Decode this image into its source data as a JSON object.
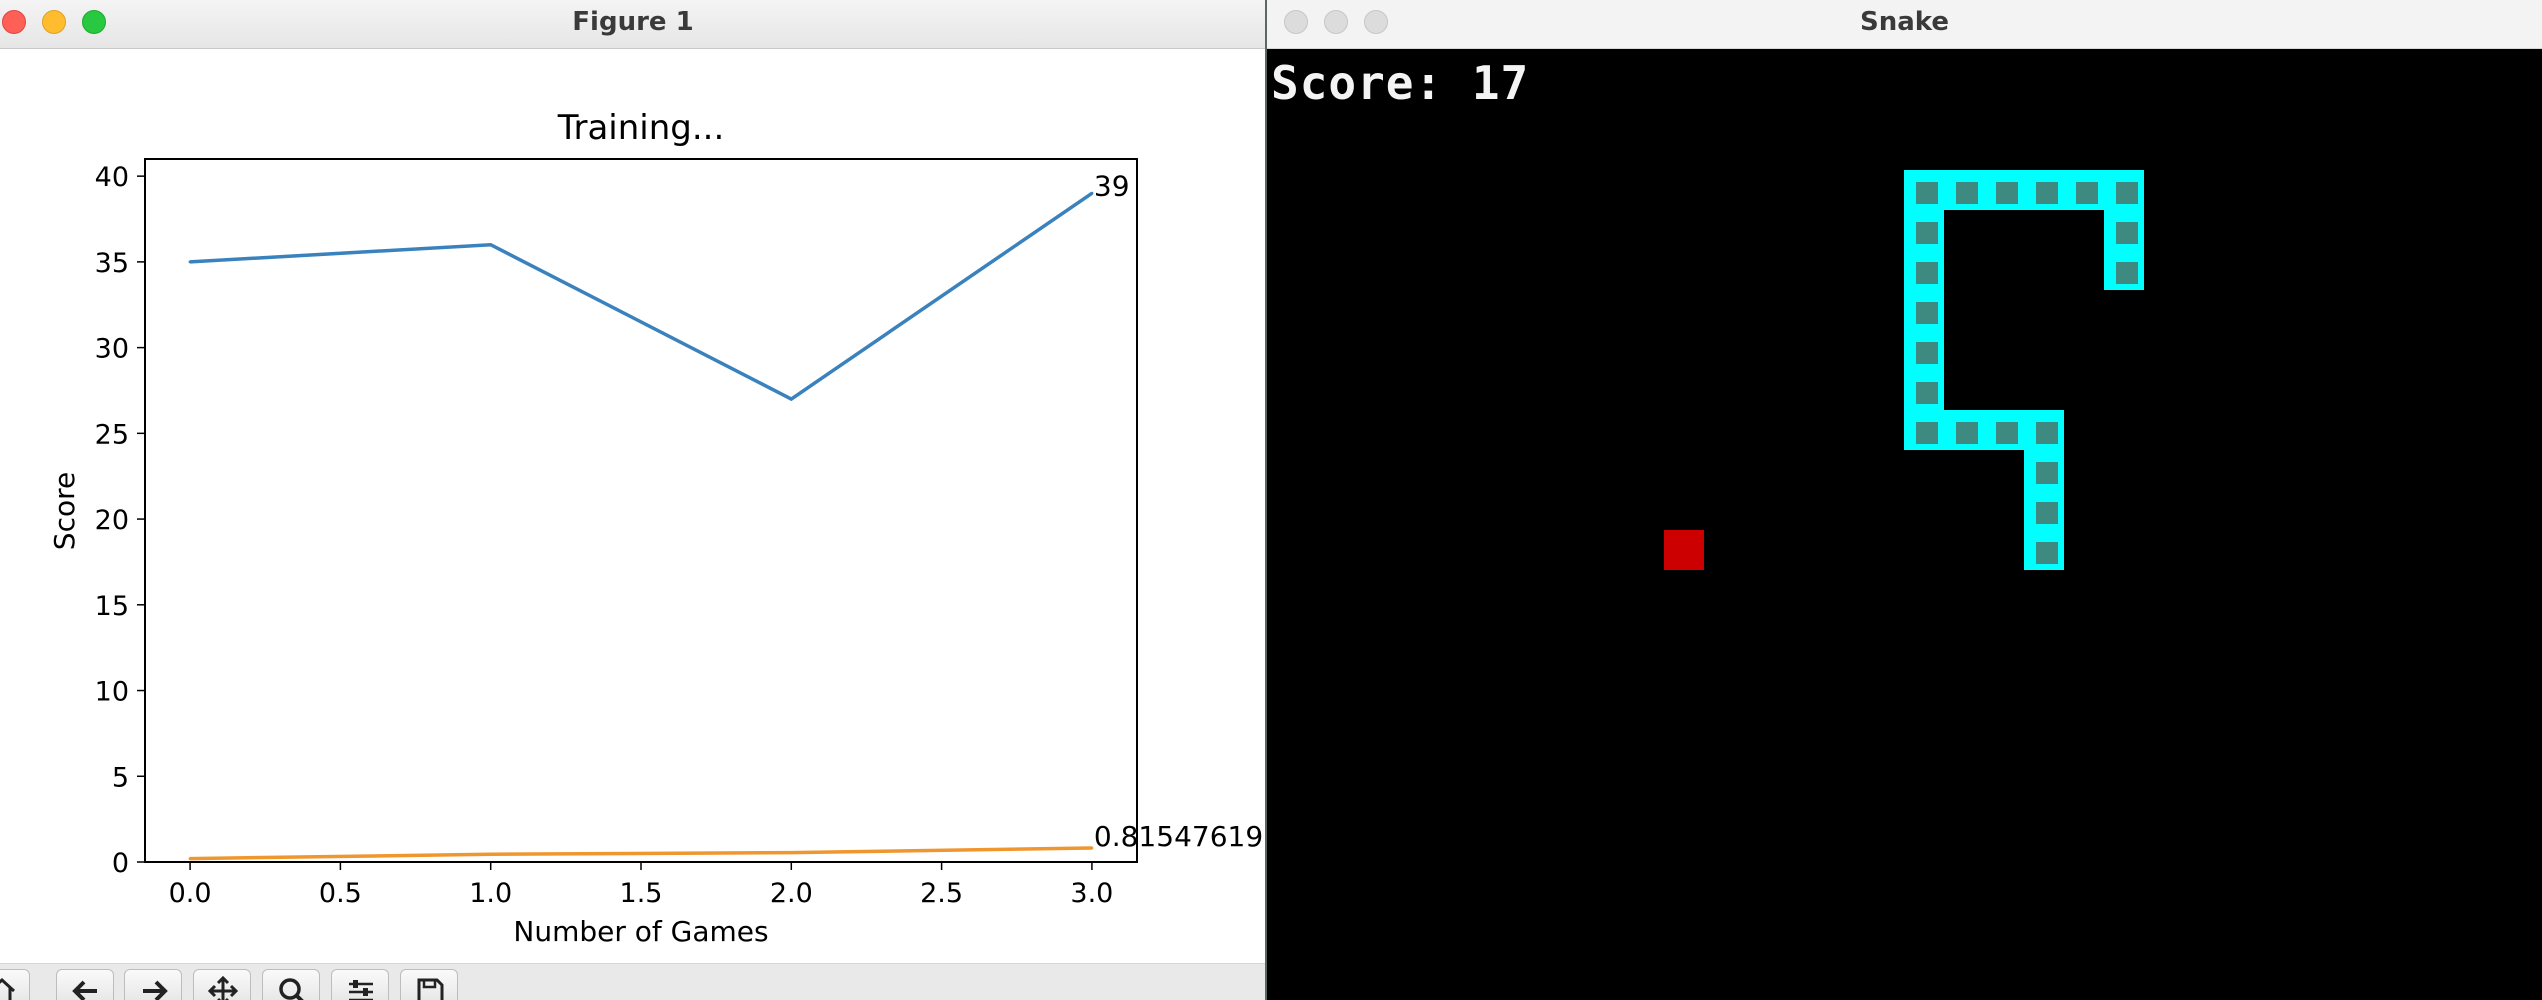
{
  "figure_window": {
    "title": "Figure 1",
    "toolbar": {
      "buttons": [
        "home-icon",
        "back-arrow-icon",
        "forward-arrow-icon",
        "pan-icon",
        "zoom-icon",
        "configure-subplots-icon",
        "save-icon"
      ]
    }
  },
  "chart_data": {
    "type": "line",
    "title": "Training...",
    "xlabel": "Number of Games",
    "ylabel": "Score",
    "xlim": [
      -0.15,
      3.15
    ],
    "ylim": [
      0,
      41
    ],
    "xticks": [
      0.0,
      0.5,
      1.0,
      1.5,
      2.0,
      2.5,
      3.0
    ],
    "xtick_labels": [
      "0.0",
      "0.5",
      "1.0",
      "1.5",
      "2.0",
      "2.5",
      "3.0"
    ],
    "yticks": [
      0,
      5,
      10,
      15,
      20,
      25,
      30,
      35,
      40
    ],
    "ytick_labels": [
      "0",
      "5",
      "10",
      "15",
      "20",
      "25",
      "30",
      "35",
      "40"
    ],
    "grid": false,
    "series": [
      {
        "x": [
          0,
          1,
          2,
          3
        ],
        "values": [
          35,
          36,
          27,
          39
        ],
        "color": "#3a82bd",
        "end_label": "39"
      },
      {
        "x": [
          0,
          1,
          2,
          3
        ],
        "values": [
          0.2,
          0.45,
          0.55,
          0.81547619
        ],
        "color": "#f0962e",
        "end_label": "0.815476190"
      }
    ]
  },
  "snake_window": {
    "title": "Snake",
    "score_text": "Score: 17",
    "board": {
      "snake_color": "#00ffff",
      "segment_inner_color": "#3f8a80",
      "food_color": "#cc0000",
      "background": "#000000",
      "snake": [
        {
          "col": 21,
          "row": 4
        },
        {
          "col": 21,
          "row": 5
        },
        {
          "col": 20,
          "row": 3
        },
        {
          "col": 21,
          "row": 3
        },
        {
          "col": 19,
          "row": 3
        },
        {
          "col": 18,
          "row": 3
        },
        {
          "col": 17,
          "row": 3
        },
        {
          "col": 16,
          "row": 3
        },
        {
          "col": 16,
          "row": 4
        },
        {
          "col": 16,
          "row": 5
        },
        {
          "col": 16,
          "row": 6
        },
        {
          "col": 16,
          "row": 7
        },
        {
          "col": 16,
          "row": 8
        },
        {
          "col": 16,
          "row": 9
        },
        {
          "col": 17,
          "row": 9
        },
        {
          "col": 18,
          "row": 9
        },
        {
          "col": 19,
          "row": 9
        },
        {
          "col": 19,
          "row": 10
        },
        {
          "col": 19,
          "row": 11
        },
        {
          "col": 19,
          "row": 12
        }
      ],
      "food": {
        "col": 10,
        "row": 12
      }
    }
  }
}
